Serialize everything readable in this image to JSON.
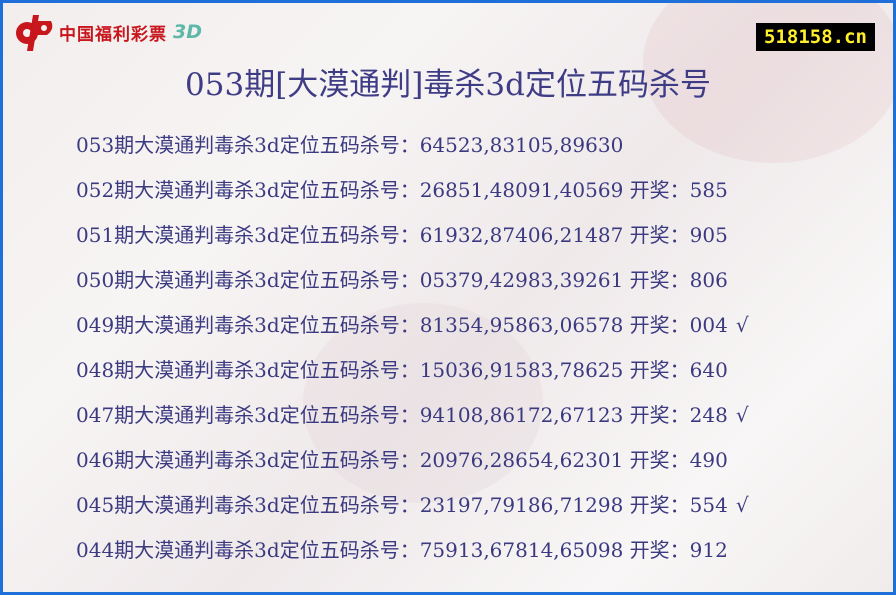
{
  "logo": {
    "text": "中国福利彩票",
    "suffix": "3D"
  },
  "site_badge": "518158.cn",
  "title": "053期[大漠通判]毒杀3d定位五码杀号",
  "draw_label": "开奖：",
  "hit_mark": "√",
  "rows": [
    {
      "prefix": "053期大漠通判毒杀3d定位五码杀号：",
      "codes": "64523,83105,89630",
      "draw": "",
      "hit": false
    },
    {
      "prefix": "052期大漠通判毒杀3d定位五码杀号：",
      "codes": "26851,48091,40569",
      "draw": "585",
      "hit": false
    },
    {
      "prefix": "051期大漠通判毒杀3d定位五码杀号：",
      "codes": "61932,87406,21487",
      "draw": "905",
      "hit": false
    },
    {
      "prefix": "050期大漠通判毒杀3d定位五码杀号：",
      "codes": "05379,42983,39261",
      "draw": "806",
      "hit": false
    },
    {
      "prefix": "049期大漠通判毒杀3d定位五码杀号：",
      "codes": "81354,95863,06578",
      "draw": "004",
      "hit": true
    },
    {
      "prefix": "048期大漠通判毒杀3d定位五码杀号：",
      "codes": "15036,91583,78625",
      "draw": "640",
      "hit": false
    },
    {
      "prefix": "047期大漠通判毒杀3d定位五码杀号：",
      "codes": "94108,86172,67123",
      "draw": "248",
      "hit": true
    },
    {
      "prefix": "046期大漠通判毒杀3d定位五码杀号：",
      "codes": "20976,28654,62301",
      "draw": "490",
      "hit": false
    },
    {
      "prefix": "045期大漠通判毒杀3d定位五码杀号：",
      "codes": "23197,79186,71298",
      "draw": "554",
      "hit": true
    },
    {
      "prefix": "044期大漠通判毒杀3d定位五码杀号：",
      "codes": "75913,67814,65098",
      "draw": "912",
      "hit": false
    }
  ],
  "colors": {
    "border": "#1f6fd8",
    "text": "#3b3a80",
    "badge_bg": "#000000",
    "badge_text": "#ffef2a",
    "logo_red": "#c8161d"
  }
}
